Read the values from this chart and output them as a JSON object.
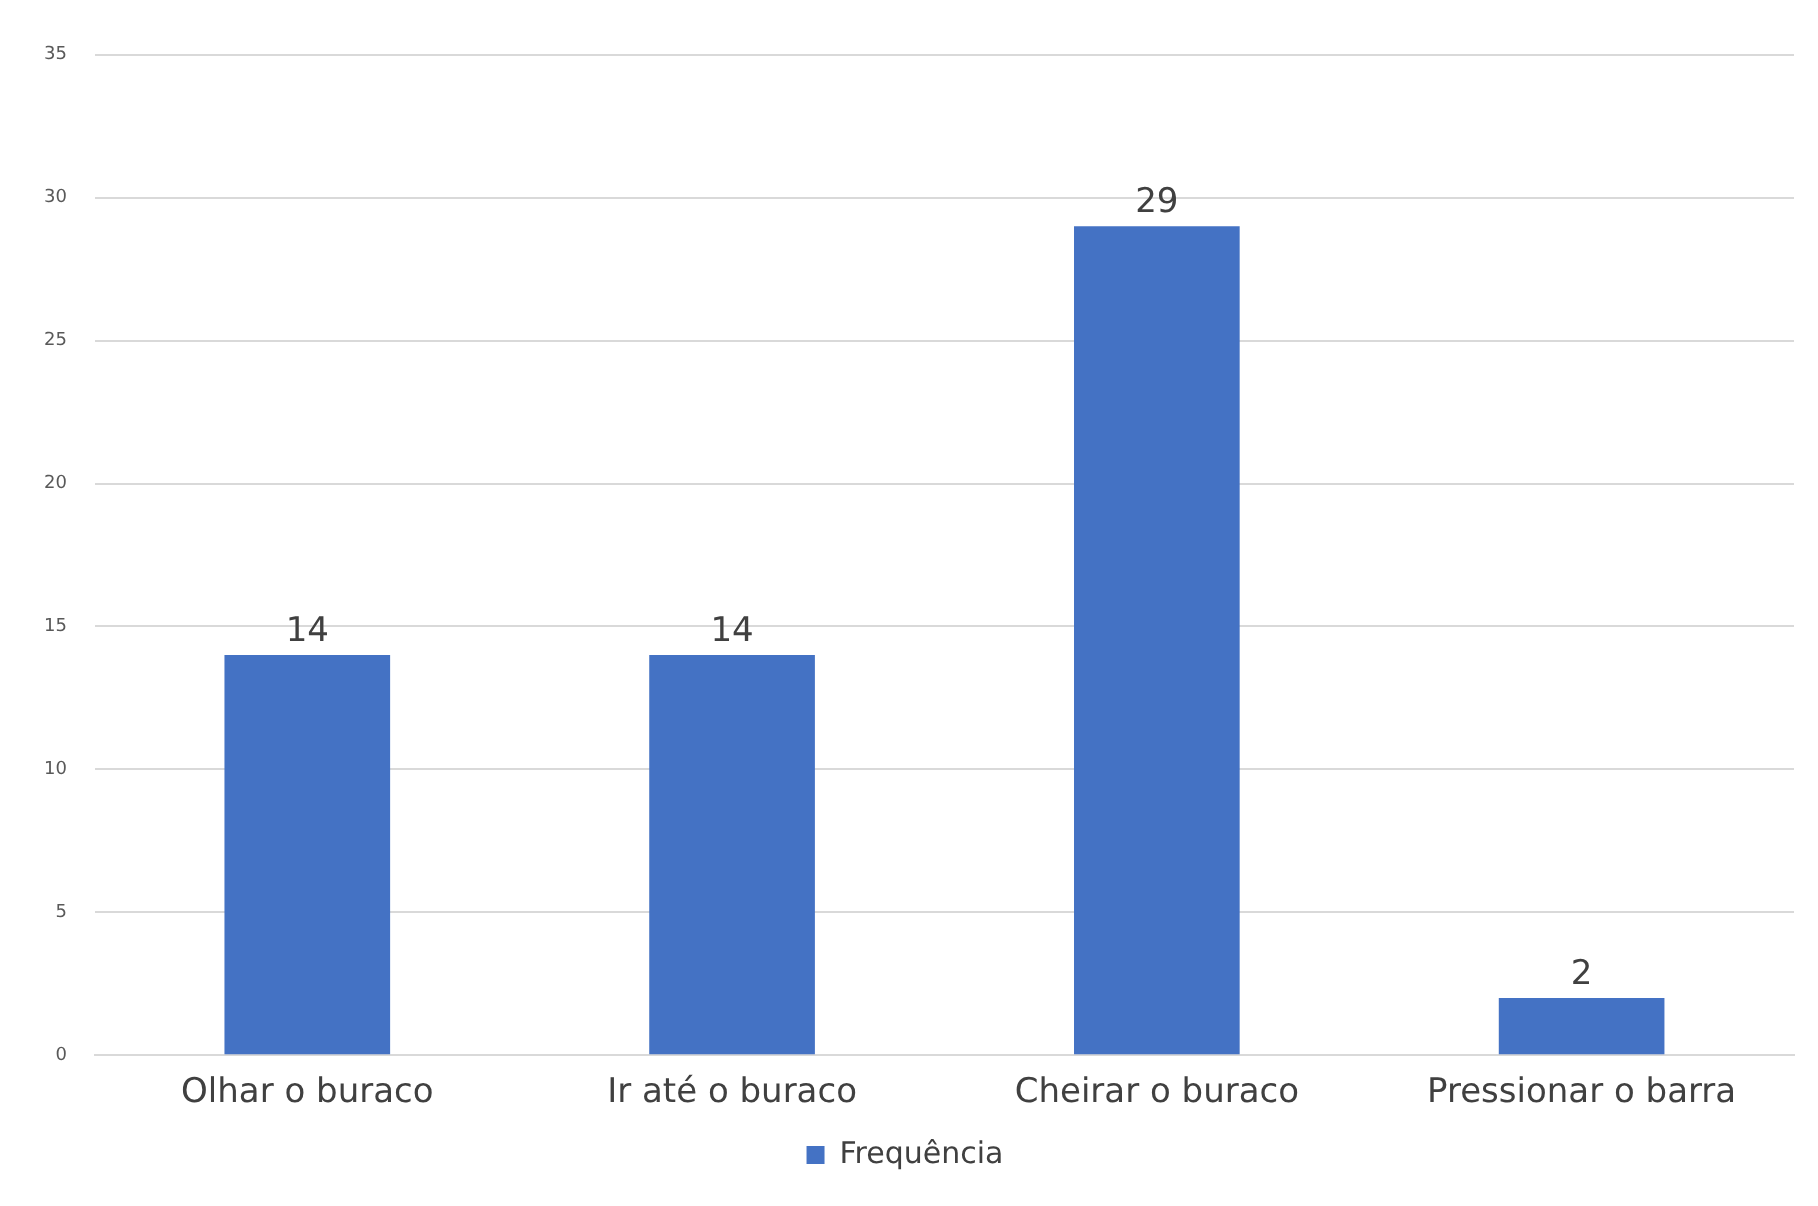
{
  "chart_data": {
    "type": "bar",
    "categories": [
      "Olhar o buraco",
      "Ir até o buraco",
      "Cheirar o buraco",
      "Pressionar o barra"
    ],
    "series": [
      {
        "name": "Frequência",
        "color": "#4472c4",
        "values": [
          14,
          14,
          29,
          2
        ]
      }
    ],
    "ylim": [
      0,
      35
    ],
    "yticks": [
      0,
      5,
      10,
      15,
      20,
      25,
      30,
      35
    ],
    "grid": "y",
    "legend": "bottom",
    "data_labels": true
  }
}
